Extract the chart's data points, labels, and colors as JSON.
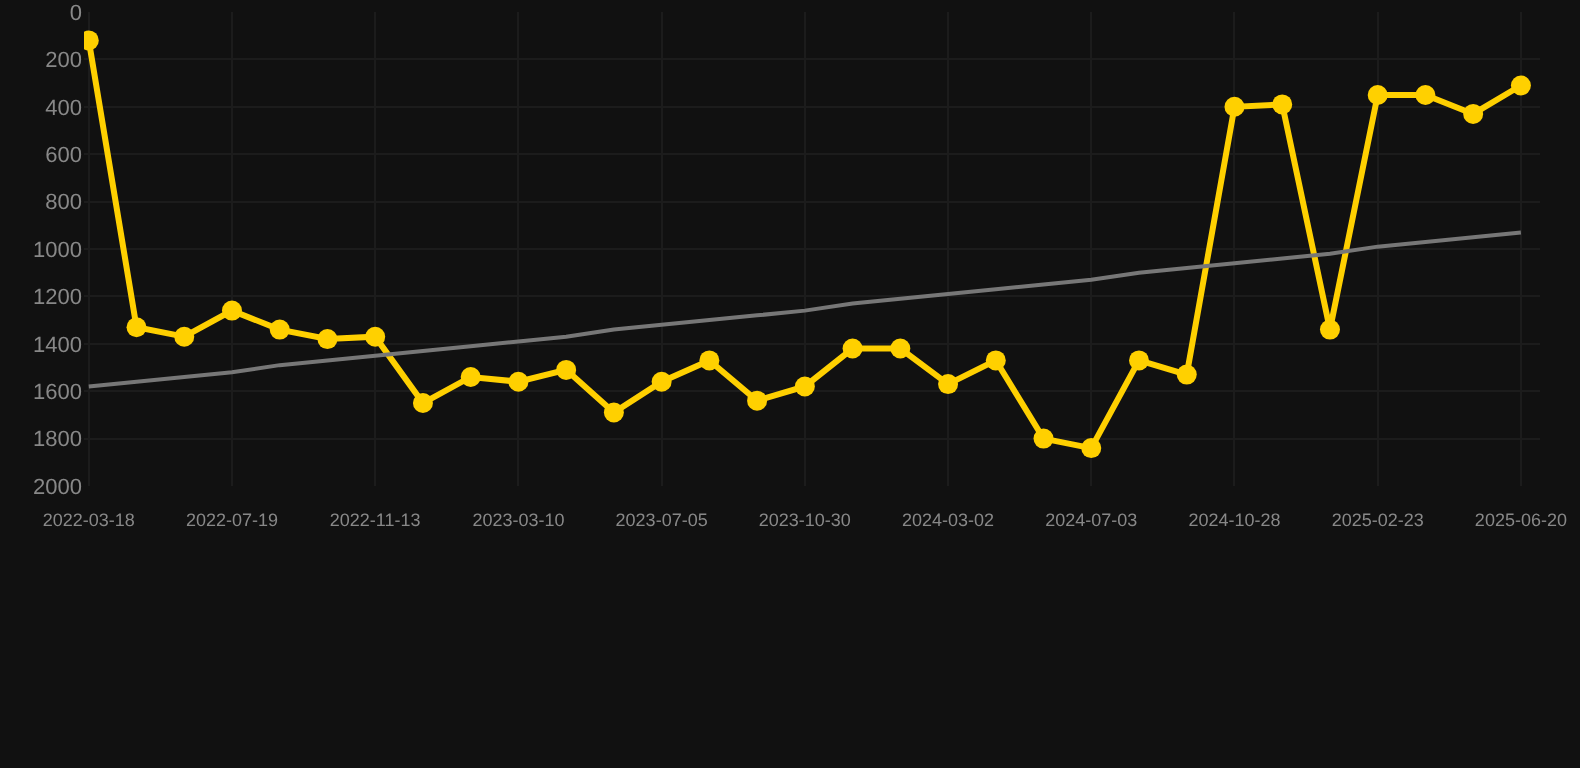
{
  "chart_data": {
    "type": "line",
    "categories": [
      "2022-03-18",
      null,
      null,
      "2022-07-19",
      null,
      null,
      "2022-11-13",
      null,
      null,
      "2023-03-10",
      null,
      null,
      "2023-07-05",
      null,
      null,
      "2023-10-30",
      null,
      null,
      "2024-03-02",
      null,
      null,
      "2024-07-03",
      null,
      null,
      "2024-10-28",
      null,
      null,
      "2025-02-23",
      null,
      null,
      "2025-06-20"
    ],
    "series": [
      {
        "color": "#ffd000",
        "marker": "circle",
        "values": [
          120,
          1330,
          1370,
          1260,
          1340,
          1380,
          1370,
          1650,
          1540,
          1560,
          1510,
          1690,
          1560,
          1470,
          1640,
          1580,
          1420,
          1420,
          1570,
          1470,
          1800,
          1840,
          1470,
          1530,
          400,
          390,
          1340,
          350,
          350,
          430,
          310
        ]
      },
      {
        "type": "line",
        "color": "#777777",
        "marker": "none",
        "values": [
          1580,
          1560,
          1540,
          1520,
          1490,
          1470,
          1450,
          1430,
          1410,
          1390,
          1370,
          1340,
          1320,
          1300,
          1280,
          1260,
          1230,
          1210,
          1190,
          1170,
          1150,
          1130,
          1100,
          1080,
          1060,
          1040,
          1020,
          990,
          970,
          950,
          930
        ]
      }
    ],
    "ylim": [
      2000,
      0
    ],
    "yticks": [
      0,
      200,
      400,
      600,
      800,
      1000,
      1200,
      1400,
      1600,
      1800,
      2000
    ],
    "grid": true,
    "line_style": "solid"
  }
}
